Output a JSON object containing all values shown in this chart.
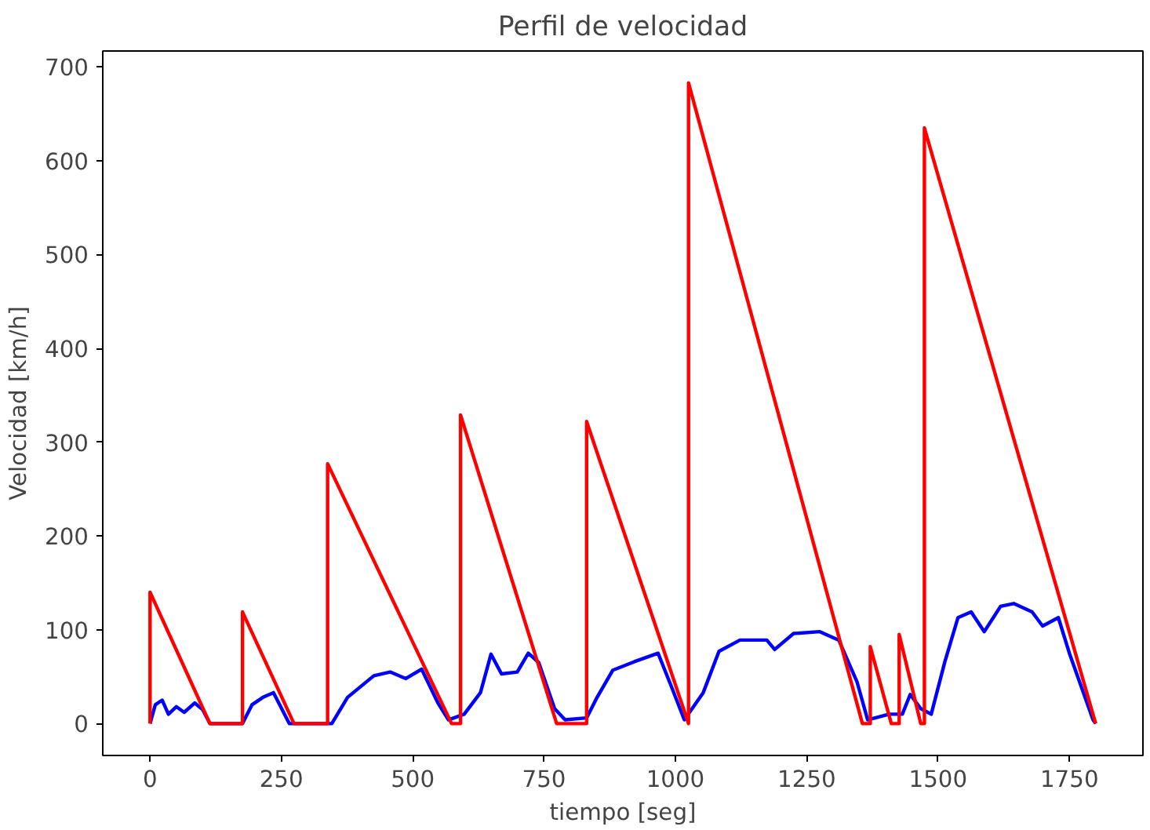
{
  "chart_data": {
    "type": "line",
    "title": "Perfil de velocidad",
    "xlabel": "tiempo [seg]",
    "ylabel": "Velocidad [km/h]",
    "xlim": [
      -90,
      1890
    ],
    "ylim": [
      -34,
      717
    ],
    "xticks": [
      0,
      250,
      500,
      750,
      1000,
      1250,
      1500,
      1750
    ],
    "yticks": [
      0,
      100,
      200,
      300,
      400,
      500,
      600,
      700
    ],
    "grid": false,
    "marker": "none",
    "line_style": "solid",
    "series": [
      {
        "color": "#0000ff",
        "x": [
          0,
          10,
          23,
          35,
          50,
          65,
          85,
          100,
          114,
          176,
          194,
          215,
          235,
          265,
          346,
          376,
          426,
          457,
          487,
          517,
          548,
          568,
          598,
          629,
          649,
          669,
          699,
          720,
          740,
          770,
          790,
          831,
          851,
          881,
          922,
          967,
          992,
          1017,
          1053,
          1083,
          1123,
          1174,
          1189,
          1225,
          1275,
          1311,
          1346,
          1366,
          1407,
          1432,
          1447,
          1467,
          1487,
          1513,
          1538,
          1563,
          1588,
          1619,
          1644,
          1679,
          1699,
          1729,
          1750,
          1795,
          1800
        ],
        "values": [
          0,
          20,
          25,
          10,
          18,
          12,
          22,
          15,
          0,
          0,
          20,
          28,
          33,
          0,
          0,
          28,
          51,
          55,
          48,
          58,
          22,
          4,
          10,
          33,
          74,
          53,
          55,
          75,
          65,
          16,
          4,
          6,
          28,
          57,
          66,
          75,
          40,
          4,
          33,
          77,
          89,
          89,
          79,
          96,
          98,
          89,
          44,
          4,
          10,
          10,
          31,
          16,
          10,
          66,
          113,
          119,
          98,
          125,
          128,
          119,
          104,
          113,
          75,
          4,
          0
        ]
      },
      {
        "color": "#ff0000",
        "x": [
          0,
          0,
          114,
          176,
          176,
          274,
          338,
          338,
          574,
          591,
          591,
          774,
          831,
          831,
          1025,
          1025,
          1356,
          1371,
          1371,
          1411,
          1426,
          1426,
          1467,
          1474,
          1474,
          1800
        ],
        "values": [
          0,
          140,
          0,
          0,
          119,
          0,
          0,
          277,
          0,
          0,
          329,
          0,
          0,
          322,
          0,
          683,
          0,
          0,
          82,
          0,
          0,
          95,
          0,
          0,
          635,
          0
        ]
      }
    ]
  }
}
